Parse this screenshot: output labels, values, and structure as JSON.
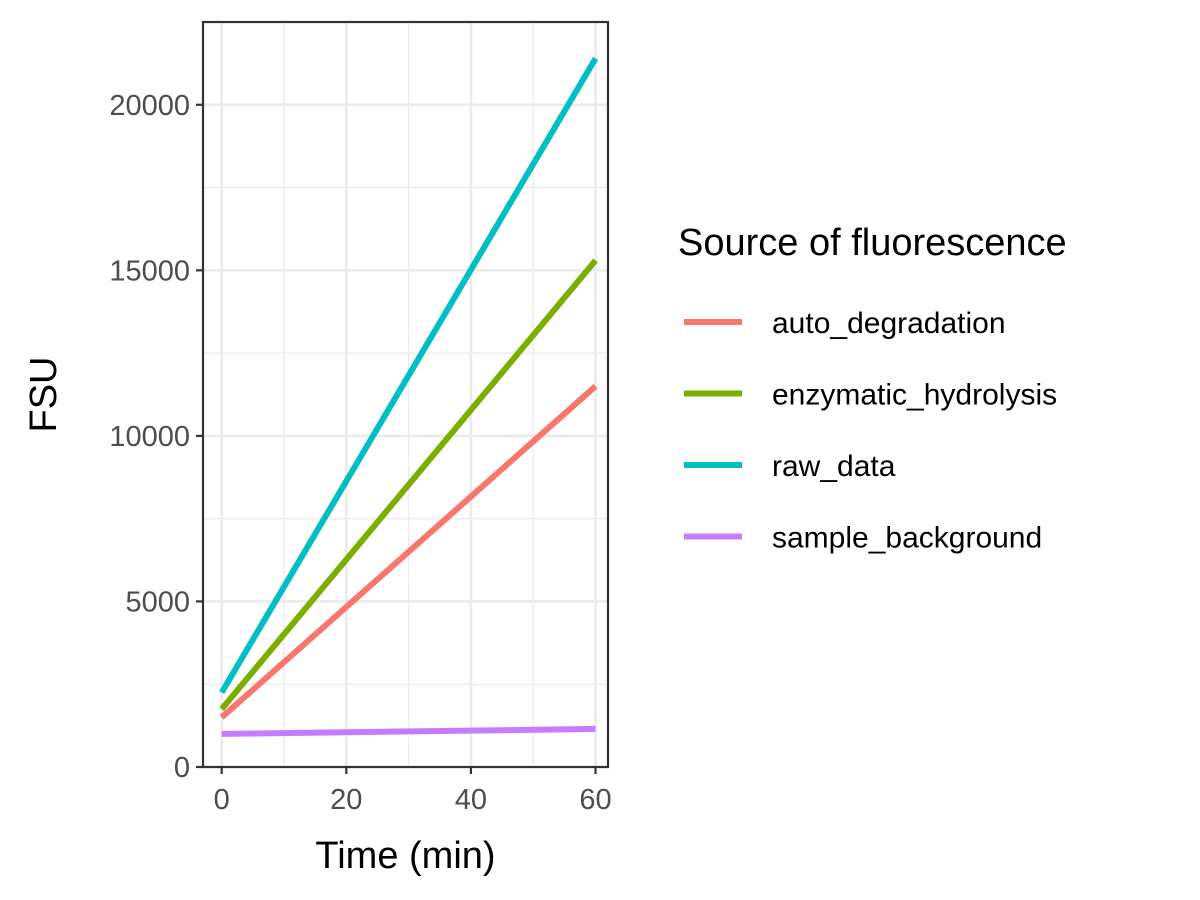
{
  "chart_data": {
    "type": "line",
    "title": "",
    "xlabel": "Time (min)",
    "ylabel": "FSU",
    "xlim": [
      -3,
      62
    ],
    "ylim": [
      0,
      22500
    ],
    "x_ticks": [
      0,
      20,
      40,
      60
    ],
    "y_ticks": [
      0,
      5000,
      10000,
      15000,
      20000
    ],
    "x_tick_labels": [
      "0",
      "20",
      "40",
      "60"
    ],
    "y_tick_labels": [
      "0",
      "5000",
      "10000",
      "15000",
      "20000"
    ],
    "grid": true,
    "legend": {
      "title": "Source of fluorescence",
      "position": "right"
    },
    "series": [
      {
        "name": "auto_degradation",
        "color": "#F8766D",
        "x": [
          0,
          60
        ],
        "y": [
          1500,
          11500
        ]
      },
      {
        "name": "enzymatic_hydrolysis",
        "color": "#7CAE00",
        "x": [
          0,
          60
        ],
        "y": [
          1750,
          15300
        ]
      },
      {
        "name": "raw_data",
        "color": "#00BFC4",
        "x": [
          0,
          60
        ],
        "y": [
          2250,
          21400
        ]
      },
      {
        "name": "sample_background",
        "color": "#C77CFF",
        "x": [
          0,
          60
        ],
        "y": [
          1000,
          1150
        ]
      }
    ]
  }
}
